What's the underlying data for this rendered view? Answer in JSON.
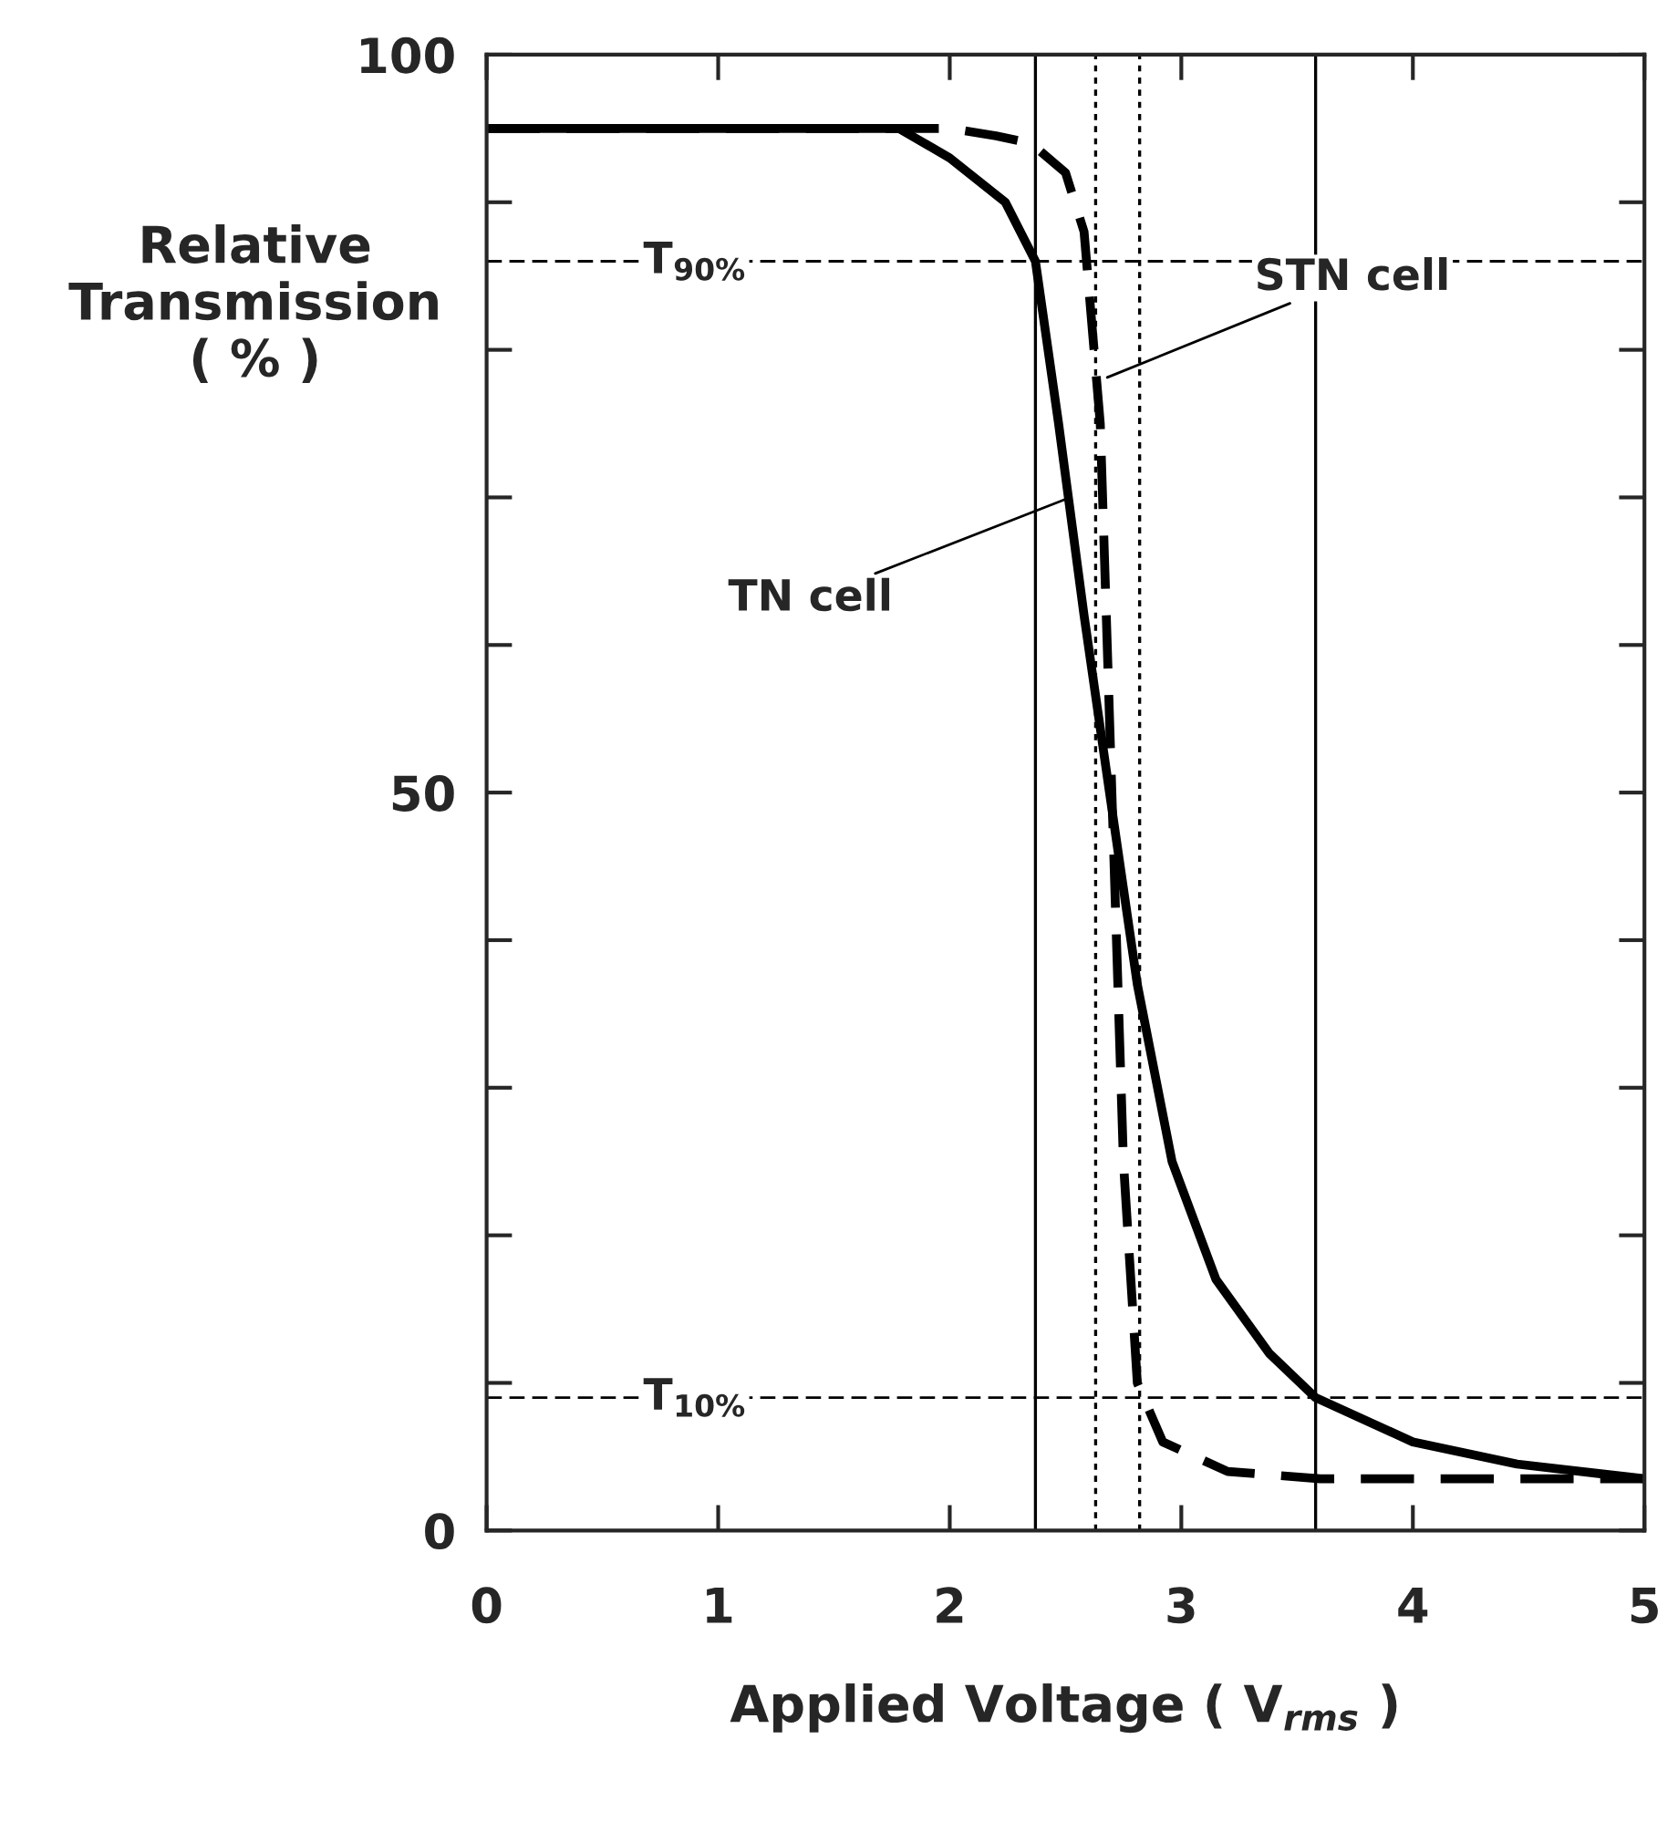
{
  "chart_data": {
    "type": "line",
    "xlabel": "Applied Voltage ( V$_{rms}$ )",
    "ylabel": "Relative\nTransmission\n( % )",
    "x": [
      0,
      1.78,
      2.0,
      2.24,
      2.37,
      2.47,
      2.58,
      2.69,
      2.81,
      2.96,
      3.15,
      3.38,
      3.58,
      4.0,
      4.45,
      5.0
    ],
    "series": [
      {
        "color": "#000000",
        "line_style": "solid",
        "values": [
          95,
          95,
          93,
          90,
          86,
          75,
          62,
          50,
          37,
          25,
          17,
          12,
          9,
          6,
          4.5,
          3.5
        ]
      },
      {
        "color": "#000000",
        "line_style": "dashed",
        "x": [
          0,
          1.78,
          2.0,
          2.2,
          2.35,
          2.5,
          2.58,
          2.65,
          2.7,
          2.75,
          2.81,
          2.92,
          3.2,
          3.6,
          4.2,
          5.0
        ],
        "values": [
          95,
          95,
          95,
          94.5,
          94,
          92,
          88,
          75,
          50,
          25,
          10,
          6,
          4,
          3.5,
          3.5,
          3.5
        ]
      }
    ],
    "xlim": [
      0,
      5
    ],
    "ylim": [
      0,
      100
    ],
    "xticks": [
      0,
      1,
      2,
      3,
      4,
      5
    ],
    "yticks": [
      0,
      {
        "value": 10,
        "label": null
      },
      {
        "value": 20,
        "label": null
      },
      {
        "value": 30,
        "label": null
      },
      {
        "value": 40,
        "label": null
      },
      50,
      {
        "value": 60,
        "label": null
      },
      {
        "value": 70,
        "label": null
      },
      {
        "value": 80,
        "label": null
      },
      {
        "value": 90,
        "label": null
      },
      100
    ],
    "ref_lines": [
      {
        "axis": "y",
        "value": 86,
        "label": "T$_{90%}$",
        "line_style": "dashed",
        "color": "#000000"
      },
      {
        "axis": "y",
        "value": 9,
        "label": "T$_{10%}$",
        "line_style": "dashed",
        "color": "#000000"
      },
      {
        "axis": "x",
        "value": 2.37,
        "label": null,
        "line_style": "solid",
        "color": "#000000"
      },
      {
        "axis": "x",
        "value": 2.63,
        "label": null,
        "line_style": "dotted",
        "color": "#000000"
      },
      {
        "axis": "x",
        "value": 2.82,
        "label": null,
        "line_style": "dotted",
        "color": "#000000"
      },
      {
        "axis": "x",
        "value": 3.58,
        "label": null,
        "line_style": "solid",
        "color": "#000000"
      }
    ],
    "annotations": [
      {
        "text": "STN cell",
        "x": 2.66,
        "y": 78
      },
      {
        "text": "TN cell",
        "x": 2.52,
        "y": 70
      }
    ],
    "grid": false,
    "legend": false,
    "marker": "none"
  }
}
